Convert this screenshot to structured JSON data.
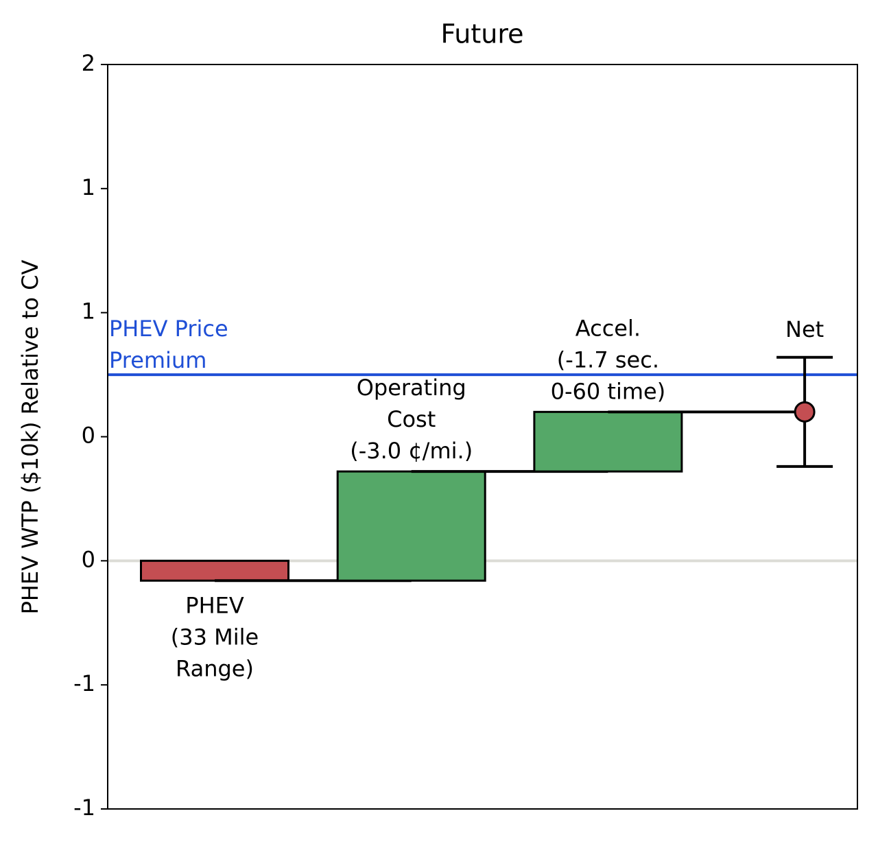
{
  "chart_data": {
    "type": "waterfall",
    "title": "Future",
    "y_label": "PHEV WTP ($10k) Relative to CV",
    "categories": [
      "PHEV\n(33 Mile\nRange)",
      "Operating\nCost\n(-3.0 ¢/mi.)",
      "Accel.\n(-1.7 sec.\n0-60 time)"
    ],
    "values": [
      -0.08,
      0.44,
      0.24
    ],
    "colors": [
      "#c44e52",
      "#55a868",
      "#55a868"
    ],
    "net": {
      "label": "Net",
      "value": 0.6,
      "error": 0.22,
      "color": "#c44e52"
    },
    "reference_line": {
      "label": "PHEV Price\nPremium",
      "value": 0.75,
      "color": "#1f4fd6"
    },
    "ylim": [
      -1,
      2
    ],
    "yticks": [
      {
        "value": -1,
        "label": "-1"
      },
      {
        "value": -0.5,
        "label": "-1"
      },
      {
        "value": 0,
        "label": "0"
      },
      {
        "value": 0.5,
        "label": "0"
      },
      {
        "value": 1,
        "label": "1"
      },
      {
        "value": 1.5,
        "label": "1"
      },
      2
    ]
  }
}
